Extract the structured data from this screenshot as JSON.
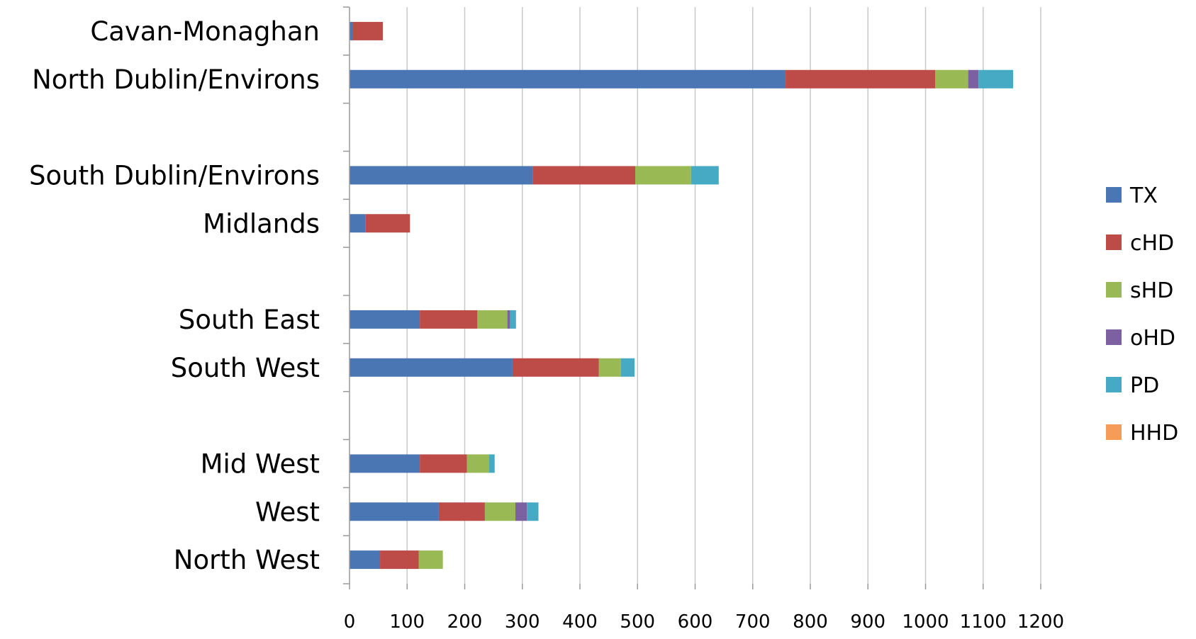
{
  "chart_data": {
    "type": "bar",
    "orientation": "horizontal",
    "stacked": true,
    "title": "",
    "xlabel": "",
    "ylabel": "",
    "xlim": [
      0,
      1200
    ],
    "x_ticks": [
      0,
      100,
      200,
      300,
      400,
      500,
      600,
      700,
      800,
      900,
      1000,
      1100,
      1200
    ],
    "grid": "vertical",
    "legend_position": "right",
    "categories": [
      "Cavan-Monaghan",
      "North Dublin/Environs",
      "",
      "South Dublin/Environs",
      "Midlands",
      "",
      "South East",
      "South West",
      "",
      "Mid West",
      "West",
      "North West"
    ],
    "series": [
      {
        "name": "TX",
        "color": "#4a77b4",
        "values": [
          5,
          757,
          0,
          318,
          28,
          0,
          122,
          283,
          0,
          122,
          155,
          53
        ]
      },
      {
        "name": "cHD",
        "color": "#bd4b48",
        "values": [
          53,
          260,
          0,
          178,
          77,
          0,
          100,
          150,
          0,
          82,
          80,
          67
        ]
      },
      {
        "name": "sHD",
        "color": "#98b954",
        "values": [
          0,
          57,
          0,
          97,
          0,
          0,
          52,
          38,
          0,
          38,
          53,
          42
        ]
      },
      {
        "name": "oHD",
        "color": "#7d60a0",
        "values": [
          0,
          18,
          0,
          0,
          0,
          0,
          5,
          0,
          0,
          0,
          20,
          0
        ]
      },
      {
        "name": "PD",
        "color": "#46aac5",
        "values": [
          0,
          60,
          0,
          48,
          0,
          0,
          10,
          24,
          0,
          10,
          20,
          0
        ]
      },
      {
        "name": "HHD",
        "color": "#f59d56",
        "values": [
          0,
          0,
          0,
          0,
          0,
          0,
          0,
          0,
          0,
          0,
          0,
          0
        ]
      }
    ]
  }
}
